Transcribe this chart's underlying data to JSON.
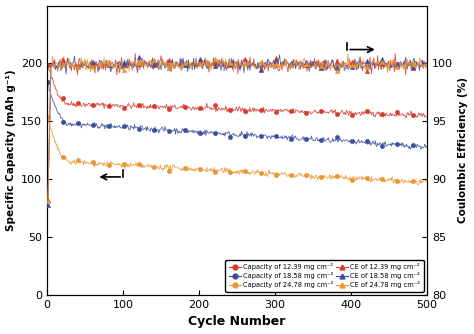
{
  "xlabel": "Cycle Number",
  "ylabel_left": "Specific Capacity (mAh g⁻¹)",
  "ylabel_right": "Coulombic Efficiency (%)",
  "xlim": [
    0,
    500
  ],
  "ylim_left": [
    0,
    250
  ],
  "ylim_right": [
    80,
    105
  ],
  "yticks_left": [
    0,
    50,
    100,
    150,
    200
  ],
  "yticks_right": [
    80,
    85,
    90,
    95,
    100
  ],
  "xticks": [
    0,
    100,
    200,
    300,
    400,
    500
  ],
  "colors": {
    "red": "#D63B2F",
    "blue": "#3B4FA0",
    "orange": "#E8962E"
  },
  "legend_labels": {
    "cap_12": "Capacity of 12.39 mg cm⁻²",
    "cap_18": "Capacity of 18.58 mg cm⁻²",
    "cap_24": "Capacity of 24.78 mg cm⁻²",
    "ce_12": "CE of 12.39 mg cm⁻²",
    "ce_18": "CE of 18.58 mg cm⁻²",
    "ce_24": "CE of 24.78 mg cm⁻²"
  },
  "background_color": "#ffffff",
  "cap_12_start": 200,
  "cap_12_mid": 165,
  "cap_12_end": 155,
  "cap_18_start": 185,
  "cap_18_mid": 148,
  "cap_18_end": 128,
  "cap_24_start": 155,
  "cap_24_mid": 115,
  "cap_24_end": 97,
  "drop_cycles": 30,
  "cap_noise": 1.2,
  "ce_noise": 0.3,
  "ce_value": 99.9,
  "ce_ramp_start": 85
}
